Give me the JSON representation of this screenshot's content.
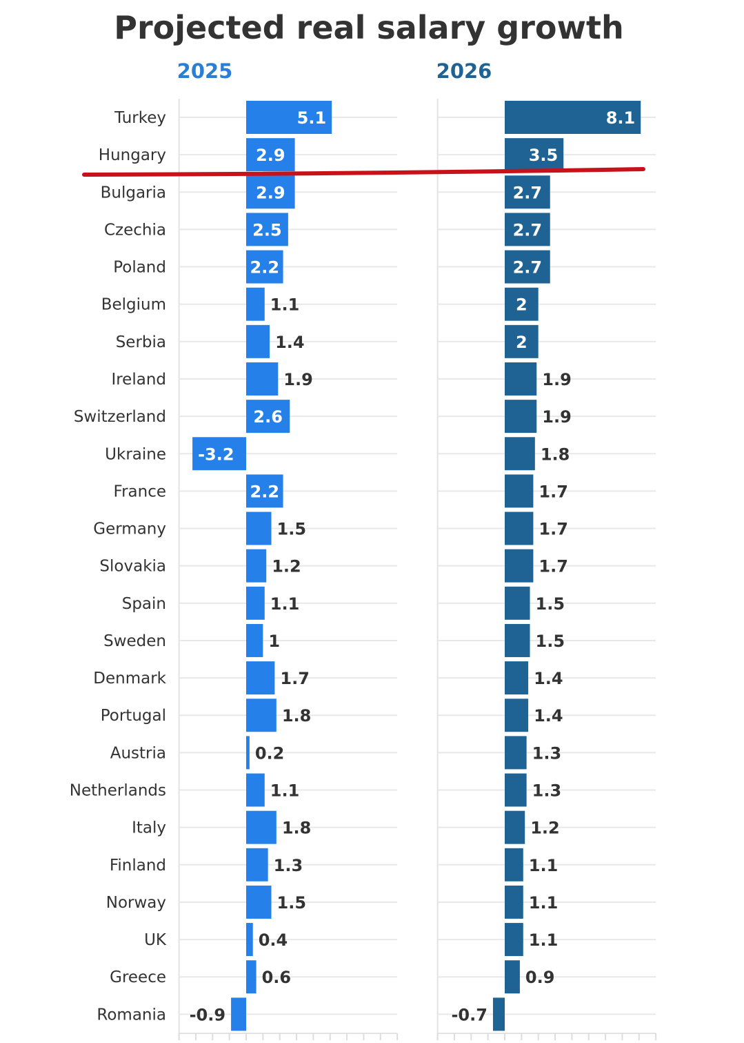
{
  "chart_data": {
    "type": "bar",
    "orientation": "horizontal",
    "title": "Projected real salary growth",
    "categories": [
      "Turkey",
      "Hungary",
      "Bulgaria",
      "Czechia",
      "Poland",
      "Belgium",
      "Serbia",
      "Ireland",
      "Switzerland",
      "Ukraine",
      "France",
      "Germany",
      "Slovakia",
      "Spain",
      "Sweden",
      "Denmark",
      "Portugal",
      "Austria",
      "Netherlands",
      "Italy",
      "Finland",
      "Norway",
      "UK",
      "Greece",
      "Romania"
    ],
    "series": [
      {
        "name": "2025",
        "color": "#2680ea",
        "label_color": "#2a7fd4",
        "values": [
          5.1,
          2.9,
          2.9,
          2.5,
          2.2,
          1.1,
          1.4,
          1.9,
          2.6,
          -3.2,
          2.2,
          1.5,
          1.2,
          1.1,
          1,
          1.7,
          1.8,
          0.2,
          1.1,
          1.8,
          1.3,
          1.5,
          0.4,
          0.6,
          -0.9
        ]
      },
      {
        "name": "2026",
        "color": "#1f6394",
        "label_color": "#1f6394",
        "values": [
          8.1,
          3.5,
          2.7,
          2.7,
          2.7,
          2,
          2,
          1.9,
          1.9,
          1.8,
          1.7,
          1.7,
          1.7,
          1.5,
          1.5,
          1.4,
          1.4,
          1.3,
          1.3,
          1.2,
          1.1,
          1.1,
          1.1,
          0.9,
          -0.7
        ]
      }
    ],
    "xlim": [
      -4,
      9
    ],
    "grid": true,
    "annotation": {
      "type": "hand-drawn red line below Hungary",
      "color": "#c8121a"
    }
  }
}
